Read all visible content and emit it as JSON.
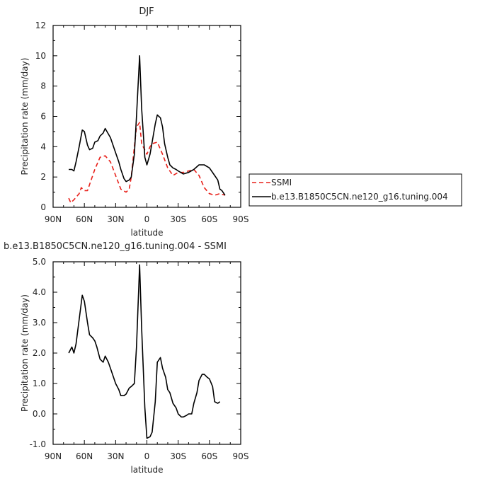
{
  "chart_data": [
    {
      "type": "line",
      "title": "DJF",
      "xlabel": "latitude",
      "ylabel": "Precipitation rate (mm/day)",
      "xlim": [
        90,
        -90
      ],
      "ylim": [
        0,
        12
      ],
      "x_ticks": [
        90,
        60,
        30,
        0,
        -30,
        -60,
        -90
      ],
      "x_tick_labels": [
        "90N",
        "60N",
        "30N",
        "0",
        "30S",
        "60S",
        "90S"
      ],
      "y_ticks": [
        0,
        2,
        4,
        6,
        8,
        10,
        12
      ],
      "y_tick_labels": [
        "0",
        "2",
        "4",
        "6",
        "8",
        "10",
        "12"
      ],
      "legend": {
        "placement": "right",
        "entries": [
          "SSMI",
          "b.e13.B1850C5CN.ne120_g16.tuning.004"
        ]
      },
      "series": [
        {
          "name": "SSMI",
          "color": "#e8201a",
          "dash": true,
          "x": [
            75,
            73,
            70,
            65,
            63,
            60,
            57,
            55,
            50,
            45,
            40,
            35,
            30,
            25,
            20,
            17,
            15,
            12,
            10,
            7,
            5,
            0,
            -3,
            -5,
            -10,
            -15,
            -20,
            -25,
            -30,
            -35,
            -40,
            -45,
            -50,
            -55,
            -60,
            -65,
            -70,
            -75
          ],
          "y": [
            0.6,
            0.3,
            0.5,
            0.9,
            1.3,
            1.1,
            1.1,
            1.5,
            2.5,
            3.3,
            3.4,
            3.0,
            2.1,
            1.2,
            1.0,
            1.2,
            2.0,
            4.0,
            5.3,
            5.6,
            4.2,
            3.5,
            4.0,
            4.2,
            4.3,
            3.5,
            2.6,
            2.1,
            2.3,
            2.3,
            2.4,
            2.5,
            2.1,
            1.3,
            0.9,
            0.8,
            0.9,
            0.8
          ]
        },
        {
          "name": "b.e13.B1850C5CN.ne120_g16.tuning.004",
          "color": "#000000",
          "dash": false,
          "x": [
            75,
            72,
            70,
            68,
            65,
            62,
            60,
            57,
            55,
            52,
            50,
            47,
            45,
            42,
            40,
            35,
            30,
            27,
            25,
            22,
            20,
            17,
            15,
            12,
            10,
            7,
            5,
            2,
            0,
            -3,
            -5,
            -8,
            -10,
            -13,
            -15,
            -17,
            -20,
            -22,
            -25,
            -28,
            -30,
            -35,
            -40,
            -45,
            -50,
            -55,
            -60,
            -65,
            -68,
            -70,
            -72,
            -75
          ],
          "y": [
            2.5,
            2.5,
            2.4,
            3.0,
            4.0,
            5.1,
            5.0,
            4.1,
            3.8,
            3.9,
            4.3,
            4.4,
            4.7,
            4.9,
            5.2,
            4.6,
            3.6,
            3.0,
            2.5,
            1.9,
            1.7,
            1.8,
            2.0,
            3.5,
            6.0,
            10.0,
            6.5,
            3.3,
            2.8,
            3.5,
            4.3,
            5.5,
            6.1,
            5.9,
            5.3,
            4.2,
            3.3,
            2.8,
            2.6,
            2.5,
            2.4,
            2.2,
            2.3,
            2.5,
            2.8,
            2.8,
            2.6,
            2.1,
            1.8,
            1.2,
            1.1,
            0.8
          ]
        }
      ]
    },
    {
      "type": "line",
      "title": "b.e13.B1850C5CN.ne120_g16.tuning.004 - SSMI",
      "xlabel": "latitude",
      "ylabel": "Precipitation rate (mm/day)",
      "xlim": [
        90,
        -90
      ],
      "ylim": [
        -1.0,
        5.0
      ],
      "x_ticks": [
        90,
        60,
        30,
        0,
        -30,
        -60,
        -90
      ],
      "x_tick_labels": [
        "90N",
        "60N",
        "30N",
        "0",
        "30S",
        "60S",
        "90S"
      ],
      "y_ticks": [
        -1,
        0,
        1,
        2,
        3,
        4,
        5
      ],
      "y_tick_labels": [
        "-1.0",
        "0.0",
        "1.0",
        "2.0",
        "3.0",
        "4.0",
        "5.0"
      ],
      "series": [
        {
          "color": "#000000",
          "x": [
            75,
            72,
            70,
            68,
            65,
            62,
            60,
            57,
            55,
            52,
            50,
            48,
            45,
            42,
            40,
            37,
            35,
            32,
            30,
            27,
            25,
            22,
            20,
            17,
            15,
            12,
            10,
            7,
            5,
            2,
            0,
            -3,
            -5,
            -8,
            -10,
            -13,
            -15,
            -18,
            -20,
            -22,
            -25,
            -28,
            -30,
            -33,
            -35,
            -38,
            -40,
            -43,
            -45,
            -48,
            -50,
            -53,
            -55,
            -58,
            -60,
            -63,
            -65,
            -68,
            -70
          ],
          "y": [
            2.0,
            2.2,
            2.0,
            2.3,
            3.1,
            3.9,
            3.7,
            3.0,
            2.6,
            2.5,
            2.4,
            2.2,
            1.8,
            1.7,
            1.9,
            1.7,
            1.5,
            1.2,
            1.0,
            0.8,
            0.6,
            0.6,
            0.65,
            0.85,
            0.9,
            1.0,
            2.2,
            4.9,
            2.8,
            0.2,
            -0.8,
            -0.75,
            -0.6,
            0.4,
            1.7,
            1.85,
            1.5,
            1.2,
            0.8,
            0.7,
            0.35,
            0.2,
            0.0,
            -0.1,
            -0.1,
            -0.05,
            0.0,
            0.0,
            0.35,
            0.7,
            1.1,
            1.3,
            1.3,
            1.2,
            1.15,
            0.9,
            0.4,
            0.35,
            0.4
          ]
        }
      ]
    }
  ]
}
